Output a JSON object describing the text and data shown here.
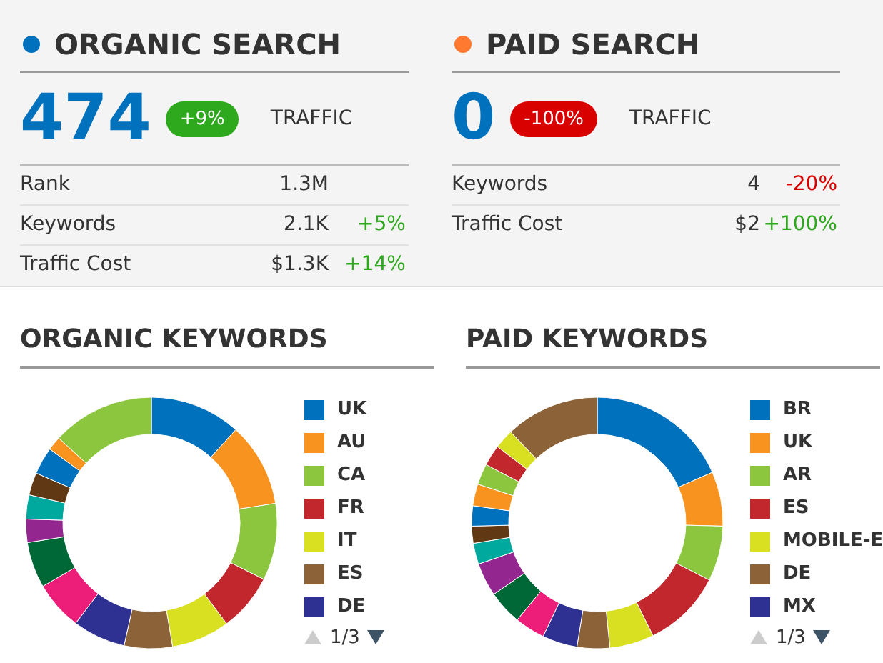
{
  "chart_data": [
    {
      "type": "other",
      "title": "ORGANIC SEARCH",
      "categories": [
        "TRAFFIC",
        "Rank",
        "Keywords",
        "Traffic Cost"
      ],
      "values": [
        9,
        null,
        5,
        14
      ],
      "value_labels": [
        "+9%",
        null,
        "+5%",
        "+14%"
      ],
      "annotations": [
        {
          "text": "474",
          "x": "TRAFFIC"
        },
        {
          "text": "1.3M",
          "x": "Rank"
        },
        {
          "text": "2.1K",
          "x": "Keywords"
        },
        {
          "text": "$1.3K",
          "x": "Traffic Cost"
        }
      ]
    },
    {
      "type": "other",
      "title": "PAID SEARCH",
      "categories": [
        "TRAFFIC",
        "Keywords",
        "Traffic Cost"
      ],
      "values": [
        -100,
        -20,
        100
      ],
      "value_labels": [
        "-100%",
        "-20%",
        "+100%"
      ],
      "annotations": [
        {
          "text": "0",
          "x": "TRAFFIC"
        },
        {
          "text": "4",
          "x": "Keywords"
        },
        {
          "text": "$2",
          "x": "Traffic Cost"
        }
      ]
    },
    {
      "type": "donut",
      "title": "ORGANIC KEYWORDS",
      "legend": "right",
      "annotations": [
        "1/3"
      ],
      "categories": [
        "UK",
        "AU",
        "CA",
        "FR",
        "IT",
        "ES",
        "DE",
        null,
        null,
        null,
        null,
        null,
        null,
        null,
        null
      ],
      "values": [
        11.7,
        10.8,
        9.9,
        7.4,
        7.5,
        6.2,
        6.8,
        6.3,
        5.9,
        3.0,
        3.1,
        2.9,
        3.5,
        1.8,
        13.2
      ],
      "colors": [
        "#0071bc",
        "#f7931e",
        "#8cc63f",
        "#c1272d",
        "#d9e021",
        "#8c6239",
        "#2e3192",
        "#ed1e79",
        "#006837",
        "#93278f",
        "#00a99d",
        "#603813",
        "#0071bc",
        "#f7931e",
        "#8cc63f"
      ]
    },
    {
      "type": "donut",
      "title": "PAID KEYWORDS",
      "legend": "right",
      "annotations": [
        "1/3"
      ],
      "categories": [
        "BR",
        "UK",
        "AR",
        "ES",
        "MOBILE-E",
        "DE",
        "MX",
        null,
        null,
        null,
        null,
        null,
        null,
        null,
        null,
        null,
        null,
        null
      ],
      "values": [
        18.4,
        7.0,
        7.1,
        10.2,
        5.7,
        4.2,
        4.5,
        3.9,
        4.4,
        4.3,
        2.7,
        2.2,
        2.6,
        2.8,
        2.7,
        2.7,
        2.5,
        12.1
      ],
      "colors": [
        "#0071bc",
        "#f7931e",
        "#8cc63f",
        "#c1272d",
        "#d9e021",
        "#8c6239",
        "#2e3192",
        "#ed1e79",
        "#006837",
        "#93278f",
        "#00a99d",
        "#603813",
        "#0071bc",
        "#f7931e",
        "#8cc63f",
        "#c1272d",
        "#d9e021",
        "#8c6239"
      ]
    }
  ]
}
